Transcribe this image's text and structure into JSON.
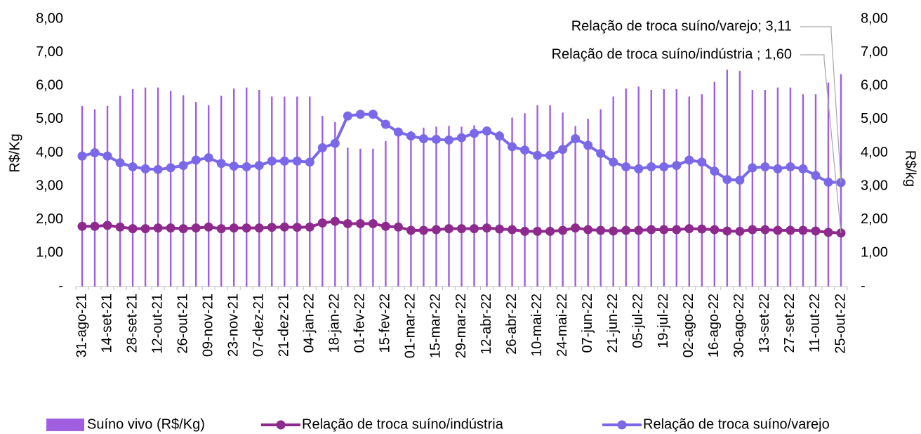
{
  "chart_data": {
    "type": "bar",
    "categories": [
      "31-ago-21",
      null,
      "14-set-21",
      null,
      "28-set-21",
      null,
      "12-out-21",
      null,
      "26-out-21",
      null,
      "09-nov-21",
      null,
      "23-nov-21",
      null,
      "07-dez-21",
      null,
      "21-dez-21",
      null,
      "04-jan-22",
      null,
      "18-jan-22",
      null,
      "01-fev-22",
      null,
      "15-fev-22",
      null,
      "01-mar-22",
      null,
      "15-mar-22",
      null,
      "29-mar-22",
      null,
      "12-abr-22",
      null,
      "26-abr-22",
      null,
      "10-mai-22",
      null,
      "24-mai-22",
      null,
      "07-jun-22",
      null,
      "21-jun-22",
      null,
      "05-jul-22",
      null,
      "19-jul-22",
      null,
      "02-ago-22",
      null,
      "16-ago-22",
      null,
      "30-ago-22",
      null,
      "13-set-22",
      null,
      "27-set-22",
      null,
      "11-out-22",
      null,
      "25-out-22"
    ],
    "series": [
      {
        "name": "Suíno vivo (R$/Kg)",
        "type": "bar",
        "axis": "y",
        "color": "#a05ee0",
        "values": [
          5.4,
          5.3,
          5.4,
          5.7,
          5.9,
          5.95,
          5.95,
          5.85,
          5.72,
          5.52,
          5.42,
          5.7,
          5.92,
          5.95,
          5.88,
          5.68,
          5.68,
          5.68,
          5.68,
          5.1,
          4.92,
          4.15,
          4.12,
          4.12,
          4.35,
          4.55,
          4.65,
          4.75,
          4.78,
          4.8,
          4.78,
          4.82,
          4.68,
          4.65,
          5.05,
          5.18,
          5.42,
          5.42,
          5.2,
          4.8,
          5.02,
          5.3,
          5.68,
          5.92,
          5.98,
          5.88,
          5.9,
          5.9,
          5.68,
          5.75,
          6.12,
          6.48,
          6.45,
          5.88,
          5.88,
          5.95,
          5.95,
          5.75,
          5.75,
          6.1,
          6.35
        ]
      },
      {
        "name": "Relação de troca suíno/indústria",
        "type": "line",
        "axis": "y2",
        "color": "#8e2a8e",
        "values": [
          1.8,
          1.8,
          1.83,
          1.78,
          1.73,
          1.73,
          1.75,
          1.75,
          1.73,
          1.75,
          1.78,
          1.73,
          1.75,
          1.75,
          1.75,
          1.77,
          1.78,
          1.77,
          1.78,
          1.9,
          1.95,
          1.88,
          1.88,
          1.88,
          1.8,
          1.78,
          1.68,
          1.68,
          1.7,
          1.73,
          1.73,
          1.73,
          1.75,
          1.72,
          1.7,
          1.65,
          1.65,
          1.65,
          1.68,
          1.75,
          1.7,
          1.68,
          1.66,
          1.68,
          1.68,
          1.7,
          1.7,
          1.7,
          1.73,
          1.72,
          1.7,
          1.66,
          1.65,
          1.7,
          1.7,
          1.68,
          1.68,
          1.68,
          1.66,
          1.62,
          1.6
        ],
        "value_labels": [
          null,
          null,
          null,
          null,
          null,
          null,
          null,
          null,
          null,
          null,
          null,
          null,
          null,
          null,
          null,
          null,
          null,
          null,
          null,
          null,
          null,
          null,
          null,
          null,
          null,
          null,
          null,
          null,
          null,
          null,
          null,
          null,
          null,
          null,
          null,
          null,
          null,
          null,
          null,
          null,
          null,
          null,
          null,
          null,
          null,
          null,
          null,
          null,
          null,
          null,
          null,
          null,
          null,
          null,
          null,
          null,
          null,
          null,
          null,
          null,
          "Relação de troca suíno/indústria ; 1,60"
        ]
      },
      {
        "name": "Relação de troca suíno/varejo",
        "type": "line",
        "axis": "y2",
        "color": "#7a68e8",
        "values": [
          3.9,
          4.0,
          3.9,
          3.7,
          3.58,
          3.52,
          3.5,
          3.55,
          3.62,
          3.78,
          3.85,
          3.68,
          3.6,
          3.58,
          3.62,
          3.75,
          3.75,
          3.75,
          3.72,
          4.15,
          4.28,
          5.1,
          5.15,
          5.15,
          4.85,
          4.62,
          4.5,
          4.42,
          4.4,
          4.38,
          4.45,
          4.58,
          4.65,
          4.5,
          4.18,
          4.08,
          3.92,
          3.92,
          4.1,
          4.42,
          4.22,
          3.98,
          3.72,
          3.58,
          3.52,
          3.58,
          3.58,
          3.62,
          3.78,
          3.72,
          3.45,
          3.2,
          3.18,
          3.55,
          3.58,
          3.52,
          3.58,
          3.52,
          3.32,
          3.12,
          3.11
        ],
        "value_labels": [
          null,
          null,
          null,
          null,
          null,
          null,
          null,
          null,
          null,
          null,
          null,
          null,
          null,
          null,
          null,
          null,
          null,
          null,
          null,
          null,
          null,
          null,
          null,
          null,
          null,
          null,
          null,
          null,
          null,
          null,
          null,
          null,
          null,
          null,
          null,
          null,
          null,
          null,
          null,
          null,
          null,
          null,
          null,
          null,
          null,
          null,
          null,
          null,
          null,
          null,
          null,
          null,
          null,
          null,
          null,
          null,
          null,
          null,
          null,
          null,
          "Relação de troca suíno/varejo; 3,11"
        ]
      }
    ],
    "ylabel": "R$/Kg",
    "y2label": "R$/kg",
    "ylim": [
      0,
      8
    ],
    "yticks": [
      {
        "value": 0,
        "label": "-"
      },
      {
        "value": 1,
        "label": "1,00"
      },
      {
        "value": 2,
        "label": "2,00"
      },
      {
        "value": 3,
        "label": "3,00"
      },
      {
        "value": 4,
        "label": "4,00"
      },
      {
        "value": 5,
        "label": "5,00"
      },
      {
        "value": 6,
        "label": "6,00"
      },
      {
        "value": 7,
        "label": "7,00"
      },
      {
        "value": 8,
        "label": "8,00"
      }
    ],
    "y2lim": [
      0,
      8
    ],
    "y2ticks": [
      {
        "value": 0,
        "label": "-"
      },
      {
        "value": 1,
        "label": "1,00"
      },
      {
        "value": 2,
        "label": "2,00"
      },
      {
        "value": 3,
        "label": "3,00"
      },
      {
        "value": 4,
        "label": "4,00"
      },
      {
        "value": 5,
        "label": "5,00"
      },
      {
        "value": 6,
        "label": "6,00"
      },
      {
        "value": 7,
        "label": "7,00"
      },
      {
        "value": 8,
        "label": "8,00"
      }
    ],
    "grid": false,
    "legend": "bottom"
  }
}
